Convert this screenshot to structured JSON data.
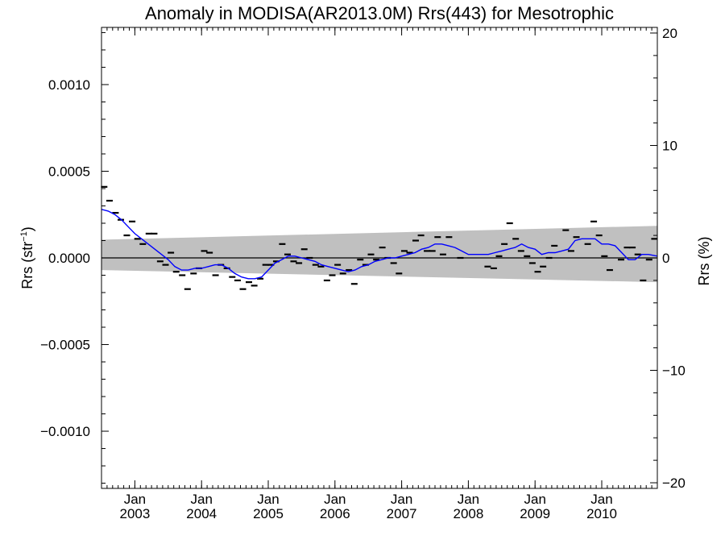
{
  "chart_data": {
    "type": "scatter",
    "title": "Anomaly in MODISA(AR2013.0M) Rrs(443) for Mesotrophic",
    "ylabel_left": "Rrs (str",
    "ylabel_left_sup": "−1",
    "ylabel_left_close": ")",
    "ylabel_right": "Rrs (%)",
    "xlim": [
      2002.5,
      2010.8333
    ],
    "ylim": [
      -0.00133,
      0.00133
    ],
    "right_ylim": [
      -20.5,
      20.5
    ],
    "grid": false,
    "y_ticks": [
      {
        "value": 0.001,
        "label": "0.0010"
      },
      {
        "value": 0.0005,
        "label": "0.0005"
      },
      {
        "value": 0.0,
        "label": "0.0000"
      },
      {
        "value": -0.0005,
        "label": "−0.0005"
      },
      {
        "value": -0.001,
        "label": "−0.0010"
      }
    ],
    "right_ticks": [
      {
        "value": 20,
        "label": "20"
      },
      {
        "value": 10,
        "label": "10"
      },
      {
        "value": 0,
        "label": "0"
      },
      {
        "value": -10,
        "label": "−10"
      },
      {
        "value": -20,
        "label": "−20"
      }
    ],
    "x_ticks": [
      {
        "value": 2003.0,
        "month": "Jan",
        "year": "2003"
      },
      {
        "value": 2004.0,
        "month": "Jan",
        "year": "2004"
      },
      {
        "value": 2005.0,
        "month": "Jan",
        "year": "2005"
      },
      {
        "value": 2006.0,
        "month": "Jan",
        "year": "2006"
      },
      {
        "value": 2007.0,
        "month": "Jan",
        "year": "2007"
      },
      {
        "value": 2008.0,
        "month": "Jan",
        "year": "2008"
      },
      {
        "value": 2009.0,
        "month": "Jan",
        "year": "2009"
      },
      {
        "value": 2010.0,
        "month": "Jan",
        "year": "2010"
      }
    ],
    "band": {
      "color": "#c0c0c0",
      "upper": [
        [
          2002.5,
          0.000105
        ],
        [
          2010.8333,
          0.000185
        ]
      ],
      "lower": [
        [
          2002.5,
          -7e-05
        ],
        [
          2010.8333,
          -0.00014
        ]
      ]
    },
    "zero_line_color": "#000000",
    "monthly_anomalies": {
      "marker": "dash",
      "color": "#000000",
      "points": [
        [
          2002.54,
          0.00041
        ],
        [
          2002.62,
          0.00033
        ],
        [
          2002.71,
          0.00026
        ],
        [
          2002.79,
          0.00022
        ],
        [
          2002.88,
          0.00013
        ],
        [
          2002.96,
          0.00021
        ],
        [
          2003.04,
          0.00011
        ],
        [
          2003.12,
          8e-05
        ],
        [
          2003.21,
          0.00014
        ],
        [
          2003.29,
          0.00014
        ],
        [
          2003.38,
          -2e-05
        ],
        [
          2003.46,
          -4e-05
        ],
        [
          2003.54,
          3e-05
        ],
        [
          2003.62,
          -8e-05
        ],
        [
          2003.71,
          -0.0001
        ],
        [
          2003.79,
          -0.00018
        ],
        [
          2003.88,
          -9e-05
        ],
        [
          2003.96,
          -6e-05
        ],
        [
          2004.04,
          4e-05
        ],
        [
          2004.12,
          3e-05
        ],
        [
          2004.21,
          -0.0001
        ],
        [
          2004.29,
          -4e-05
        ],
        [
          2004.38,
          -6e-05
        ],
        [
          2004.46,
          -0.00011
        ],
        [
          2004.54,
          -0.00013
        ],
        [
          2004.62,
          -0.00018
        ],
        [
          2004.71,
          -0.00014
        ],
        [
          2004.79,
          -0.00016
        ],
        [
          2004.88,
          -0.00012
        ],
        [
          2004.96,
          -4e-05
        ],
        [
          2005.04,
          -4e-05
        ],
        [
          2005.12,
          -2e-05
        ],
        [
          2005.21,
          8e-05
        ],
        [
          2005.29,
          2e-05
        ],
        [
          2005.38,
          -2e-05
        ],
        [
          2005.46,
          -3e-05
        ],
        [
          2005.54,
          5e-05
        ],
        [
          2005.62,
          0.0
        ],
        [
          2005.71,
          -4e-05
        ],
        [
          2005.79,
          -5e-05
        ],
        [
          2005.88,
          -0.00013
        ],
        [
          2005.96,
          -0.0001
        ],
        [
          2006.04,
          -4e-05
        ],
        [
          2006.12,
          -9e-05
        ],
        [
          2006.21,
          -7e-05
        ],
        [
          2006.29,
          -0.00015
        ],
        [
          2006.38,
          -1e-05
        ],
        [
          2006.46,
          -4e-05
        ],
        [
          2006.54,
          2e-05
        ],
        [
          2006.62,
          -1e-05
        ],
        [
          2006.71,
          6e-05
        ],
        [
          2006.79,
          0.0
        ],
        [
          2006.88,
          -3e-05
        ],
        [
          2006.96,
          -9e-05
        ],
        [
          2007.04,
          4e-05
        ],
        [
          2007.12,
          3e-05
        ],
        [
          2007.21,
          0.0001
        ],
        [
          2007.29,
          0.00013
        ],
        [
          2007.38,
          4e-05
        ],
        [
          2007.46,
          4e-05
        ],
        [
          2007.54,
          0.00012
        ],
        [
          2007.62,
          2e-05
        ],
        [
          2007.71,
          0.00012
        ],
        [
          2007.88,
          0.0
        ],
        [
          2008.29,
          -5e-05
        ],
        [
          2008.38,
          -6e-05
        ],
        [
          2008.46,
          1e-05
        ],
        [
          2008.54,
          8e-05
        ],
        [
          2008.62,
          0.0002
        ],
        [
          2008.71,
          0.00011
        ],
        [
          2008.79,
          4e-05
        ],
        [
          2008.88,
          1e-05
        ],
        [
          2008.96,
          -3e-05
        ],
        [
          2009.04,
          -8e-05
        ],
        [
          2009.12,
          -5e-05
        ],
        [
          2009.21,
          0.0
        ],
        [
          2009.29,
          7e-05
        ],
        [
          2009.46,
          0.00016
        ],
        [
          2009.54,
          4e-05
        ],
        [
          2009.62,
          0.00012
        ],
        [
          2009.79,
          8e-05
        ],
        [
          2009.88,
          0.00021
        ],
        [
          2009.96,
          0.00013
        ],
        [
          2010.04,
          1e-05
        ],
        [
          2010.12,
          -7e-05
        ],
        [
          2010.29,
          -1e-05
        ],
        [
          2010.38,
          6e-05
        ],
        [
          2010.46,
          6e-05
        ],
        [
          2010.54,
          2e-05
        ],
        [
          2010.62,
          -0.00013
        ],
        [
          2010.71,
          -1e-05
        ],
        [
          2010.79,
          0.00011
        ]
      ]
    },
    "running_mean": {
      "color": "#0000ff",
      "points": [
        [
          2002.5,
          0.00028
        ],
        [
          2002.6,
          0.00027
        ],
        [
          2002.7,
          0.00025
        ],
        [
          2002.8,
          0.00022
        ],
        [
          2002.9,
          0.00018
        ],
        [
          2003.0,
          0.00014
        ],
        [
          2003.1,
          0.00011
        ],
        [
          2003.2,
          8e-05
        ],
        [
          2003.3,
          5e-05
        ],
        [
          2003.4,
          2e-05
        ],
        [
          2003.5,
          -1e-05
        ],
        [
          2003.6,
          -5e-05
        ],
        [
          2003.7,
          -7e-05
        ],
        [
          2003.8,
          -7e-05
        ],
        [
          2003.9,
          -6e-05
        ],
        [
          2004.0,
          -6e-05
        ],
        [
          2004.1,
          -5e-05
        ],
        [
          2004.2,
          -4e-05
        ],
        [
          2004.3,
          -4e-05
        ],
        [
          2004.4,
          -6e-05
        ],
        [
          2004.5,
          -9e-05
        ],
        [
          2004.6,
          -0.00011
        ],
        [
          2004.7,
          -0.00012
        ],
        [
          2004.8,
          -0.00012
        ],
        [
          2004.9,
          -0.00011
        ],
        [
          2005.0,
          -7e-05
        ],
        [
          2005.1,
          -3e-05
        ],
        [
          2005.2,
          -1e-05
        ],
        [
          2005.3,
          1e-05
        ],
        [
          2005.4,
          1e-05
        ],
        [
          2005.5,
          0.0
        ],
        [
          2005.6,
          -1e-05
        ],
        [
          2005.7,
          -2e-05
        ],
        [
          2005.8,
          -4e-05
        ],
        [
          2005.9,
          -5e-05
        ],
        [
          2006.0,
          -6e-05
        ],
        [
          2006.1,
          -7e-05
        ],
        [
          2006.2,
          -8e-05
        ],
        [
          2006.3,
          -7e-05
        ],
        [
          2006.4,
          -5e-05
        ],
        [
          2006.5,
          -4e-05
        ],
        [
          2006.6,
          -2e-05
        ],
        [
          2006.7,
          -1e-05
        ],
        [
          2006.8,
          0.0
        ],
        [
          2006.9,
          0.0
        ],
        [
          2007.0,
          1e-05
        ],
        [
          2007.1,
          2e-05
        ],
        [
          2007.2,
          3e-05
        ],
        [
          2007.3,
          5e-05
        ],
        [
          2007.4,
          6e-05
        ],
        [
          2007.5,
          8e-05
        ],
        [
          2007.6,
          8e-05
        ],
        [
          2007.7,
          7e-05
        ],
        [
          2007.8,
          6e-05
        ],
        [
          2007.9,
          4e-05
        ],
        [
          2008.0,
          2e-05
        ],
        [
          2008.1,
          2e-05
        ],
        [
          2008.2,
          2e-05
        ],
        [
          2008.3,
          2e-05
        ],
        [
          2008.4,
          3e-05
        ],
        [
          2008.5,
          4e-05
        ],
        [
          2008.6,
          5e-05
        ],
        [
          2008.7,
          6e-05
        ],
        [
          2008.8,
          8e-05
        ],
        [
          2008.9,
          6e-05
        ],
        [
          2009.0,
          5e-05
        ],
        [
          2009.1,
          2e-05
        ],
        [
          2009.2,
          3e-05
        ],
        [
          2009.3,
          3e-05
        ],
        [
          2009.4,
          4e-05
        ],
        [
          2009.5,
          5e-05
        ],
        [
          2009.6,
          0.0001
        ],
        [
          2009.7,
          0.00011
        ],
        [
          2009.8,
          0.00011
        ],
        [
          2009.9,
          0.00011
        ],
        [
          2010.0,
          8e-05
        ],
        [
          2010.1,
          8e-05
        ],
        [
          2010.2,
          7e-05
        ],
        [
          2010.3,
          3e-05
        ],
        [
          2010.4,
          -1e-05
        ],
        [
          2010.5,
          -1e-05
        ],
        [
          2010.6,
          2e-05
        ],
        [
          2010.7,
          2e-05
        ],
        [
          2010.8333,
          1e-05
        ]
      ]
    }
  }
}
